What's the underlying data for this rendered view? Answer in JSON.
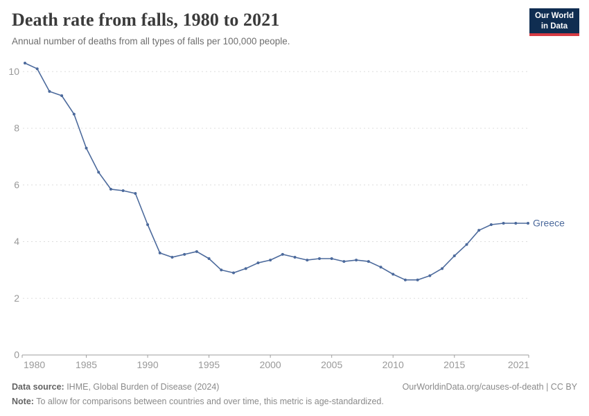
{
  "header": {
    "title": "Death rate from falls, 1980 to 2021",
    "subtitle": "Annual number of deaths from all types of falls per 100,000 people.",
    "logo": {
      "line1": "Our World",
      "line2": "in Data",
      "bg_color": "#0f2d51",
      "accent_color": "#d63b43"
    }
  },
  "chart_data": {
    "type": "line",
    "title": "Death rate from falls, 1980 to 2021",
    "xlabel": "",
    "ylabel": "",
    "x": [
      1980,
      1981,
      1982,
      1983,
      1984,
      1985,
      1986,
      1987,
      1988,
      1989,
      1990,
      1991,
      1992,
      1993,
      1994,
      1995,
      1996,
      1997,
      1998,
      1999,
      2000,
      2001,
      2002,
      2003,
      2004,
      2005,
      2006,
      2007,
      2008,
      2009,
      2010,
      2011,
      2012,
      2013,
      2014,
      2015,
      2016,
      2017,
      2018,
      2019,
      2020,
      2021
    ],
    "series": [
      {
        "name": "Greece",
        "color": "#4c6a9c",
        "values": [
          10.3,
          10.1,
          9.3,
          9.15,
          8.5,
          7.3,
          6.45,
          5.85,
          5.8,
          5.7,
          4.6,
          3.6,
          3.45,
          3.55,
          3.65,
          3.4,
          3.0,
          2.9,
          3.05,
          3.25,
          3.35,
          3.55,
          3.45,
          3.35,
          3.4,
          3.4,
          3.3,
          3.35,
          3.3,
          3.1,
          2.85,
          2.65,
          2.65,
          2.8,
          3.05,
          3.5,
          3.9,
          4.4,
          4.6,
          4.65,
          4.65,
          4.65
        ]
      }
    ],
    "ylim": [
      0,
      10.5
    ],
    "yticks": [
      0,
      2,
      4,
      6,
      8,
      10
    ],
    "xticks": [
      1980,
      1985,
      1990,
      1995,
      2000,
      2005,
      2010,
      2015,
      2021
    ],
    "grid": "horizontal-dashed",
    "grid_color": "#dddddd",
    "axis_color": "#9e9e9e",
    "tick_label_color": "#999999",
    "legend_position": "end-of-line"
  },
  "footer": {
    "source_label": "Data source:",
    "source_text": " IHME, Global Burden of Disease (2024)",
    "attribution": "OurWorldinData.org/causes-of-death | CC BY",
    "note_label": "Note:",
    "note_text": " To allow for comparisons between countries and over time, this metric is age-standardized."
  }
}
